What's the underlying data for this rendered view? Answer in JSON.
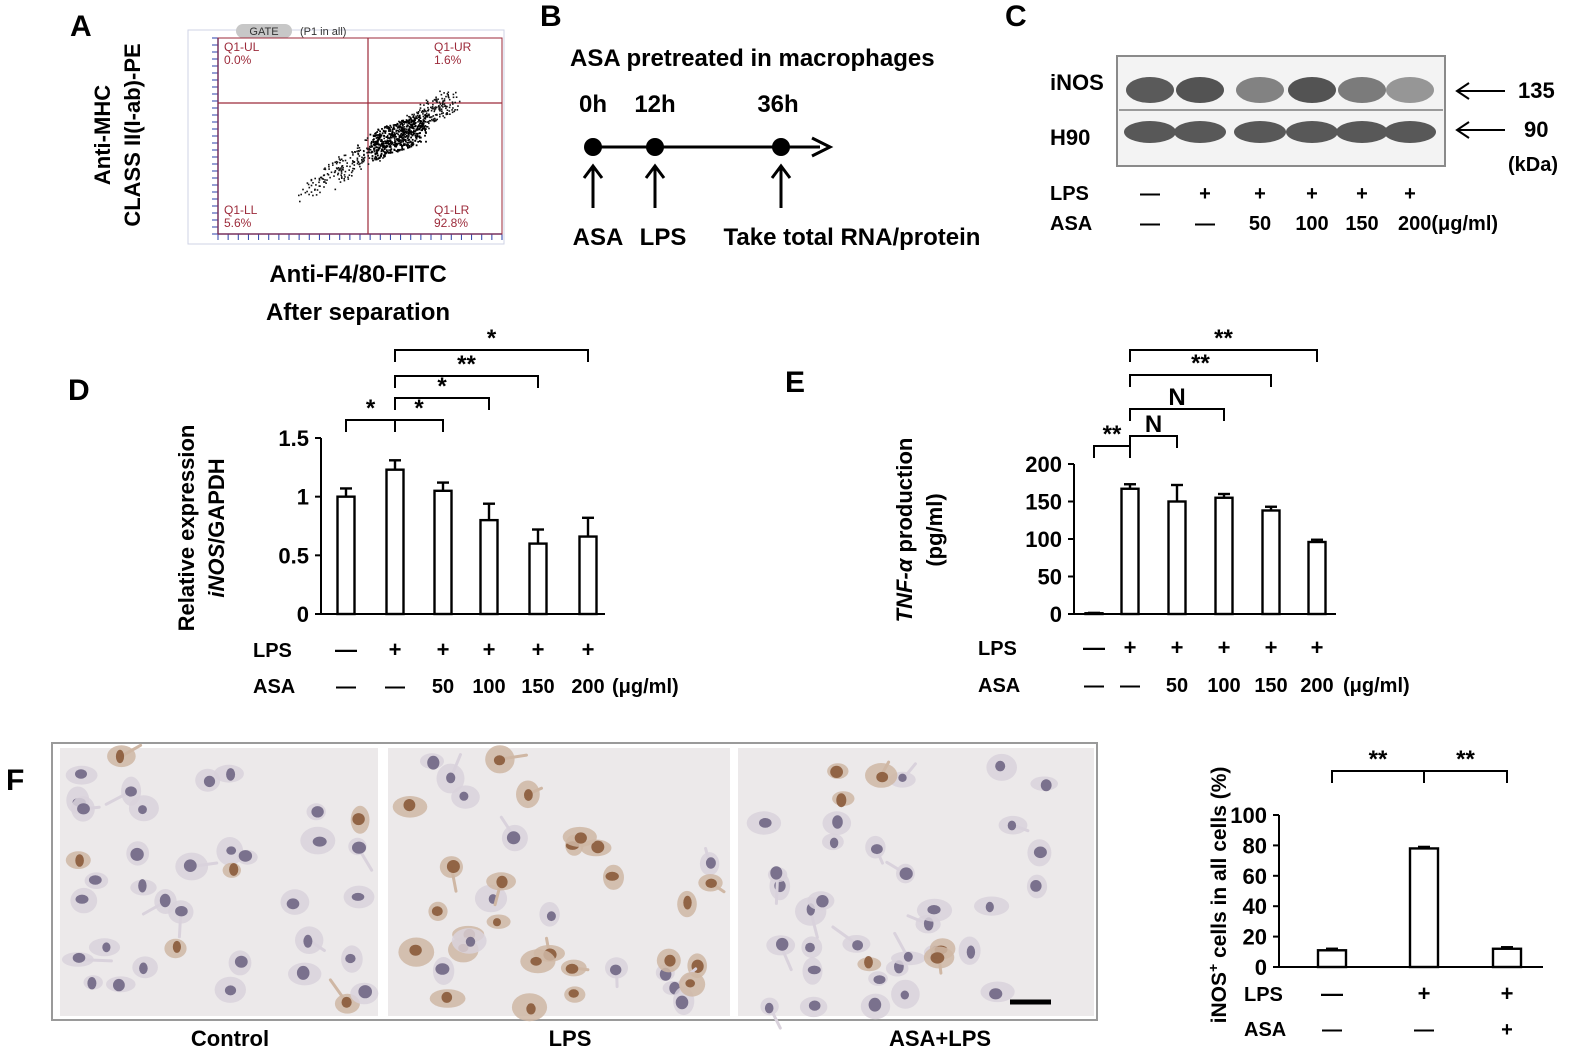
{
  "panels": {
    "A": {
      "label": "A",
      "gate": "GATE",
      "gate_detail": "(P1 in all)",
      "ylabel1": "Anti-MHC",
      "ylabel2": "CLASS II(I-ab)-PE",
      "xlabel": "Anti-F4/80-FITC",
      "caption": "After separation",
      "quadrants": {
        "ul": {
          "name": "Q1-UL",
          "value": "0.0%"
        },
        "ur": {
          "name": "Q1-UR",
          "value": "1.6%"
        },
        "ll": {
          "name": "Q1-LL",
          "value": "5.6%"
        },
        "lr": {
          "name": "Q1-LR",
          "value": "92.8%"
        }
      },
      "colors": {
        "quadrant_line": "#9c2a3a",
        "axis": "#2b3fa8",
        "dots": "#111111"
      }
    },
    "B": {
      "label": "B",
      "title": "ASA pretreated in macrophages",
      "times": [
        "0h",
        "12h",
        "36h"
      ],
      "events": [
        "ASA",
        "LPS",
        "Take total RNA/protein"
      ]
    },
    "C": {
      "label": "C",
      "bands": [
        {
          "name": "iNOS",
          "size": "135"
        },
        {
          "name": "H90",
          "size": "90"
        }
      ],
      "unit": "(kDa)",
      "lps_label": "LPS",
      "asa_label": "ASA",
      "lps": [
        "—",
        "+",
        "+",
        "+",
        "+",
        "+"
      ],
      "asa": [
        "—",
        "—",
        "50",
        "100",
        "150",
        "200(μg/ml)"
      ],
      "inos_intensity": [
        0.85,
        0.9,
        0.55,
        0.9,
        0.6,
        0.4
      ],
      "h90_intensity": [
        0.8,
        0.8,
        0.8,
        0.8,
        0.8,
        0.8
      ]
    },
    "F": {
      "label": "F",
      "micrographs": [
        "Control",
        "LPS",
        "ASA+LPS"
      ],
      "micrograph_colors": {
        "background": "#ece9ea",
        "nucleus": "#6f6684",
        "brown": "#8a5a3a"
      }
    }
  },
  "chart_data": [
    {
      "id": "D",
      "label": "D",
      "type": "bar",
      "ylabel_line1": "Relative expression",
      "ylabel_italic": "iNOS",
      "ylabel_rest": "/GAPDH",
      "yticks": [
        "0",
        "0.5",
        "1",
        "1.5"
      ],
      "ylim": [
        0,
        1.5
      ],
      "values": [
        1.0,
        1.23,
        1.05,
        0.8,
        0.6,
        0.66
      ],
      "errors": [
        0.07,
        0.08,
        0.07,
        0.14,
        0.12,
        0.16
      ],
      "lps": [
        "—",
        "+",
        "+",
        "+",
        "+",
        "+"
      ],
      "asa": [
        "—",
        "—",
        "50",
        "100",
        "150",
        "200"
      ],
      "unit": "(μg/ml)",
      "lps_label": "LPS",
      "asa_label": "ASA",
      "significance": [
        {
          "from": 0,
          "to": 1,
          "label": "*"
        },
        {
          "from": 1,
          "to": 2,
          "label": "*"
        },
        {
          "from": 1,
          "to": 3,
          "label": "*"
        },
        {
          "from": 1,
          "to": 4,
          "label": "**"
        },
        {
          "from": 1,
          "to": 5,
          "label": "*"
        }
      ]
    },
    {
      "id": "E",
      "label": "E",
      "type": "bar",
      "ylabel_italic": "TNF-α",
      "ylabel_rest": " production",
      "ylabel_line2": "(pg/ml)",
      "yticks": [
        "0",
        "50",
        "100",
        "150",
        "200"
      ],
      "ylim": [
        0,
        200
      ],
      "values": [
        1,
        167,
        150,
        155,
        138,
        96
      ],
      "errors": [
        0.5,
        6,
        22,
        5,
        5,
        3
      ],
      "lps": [
        "—",
        "+",
        "+",
        "+",
        "+",
        "+"
      ],
      "asa": [
        "—",
        "—",
        "50",
        "100",
        "150",
        "200"
      ],
      "unit": "(μg/ml)",
      "lps_label": "LPS",
      "asa_label": "ASA",
      "significance": [
        {
          "from": 0,
          "to": 1,
          "label": "**"
        },
        {
          "from": 1,
          "to": 2,
          "label": "N"
        },
        {
          "from": 1,
          "to": 3,
          "label": "N"
        },
        {
          "from": 1,
          "to": 4,
          "label": "**"
        },
        {
          "from": 1,
          "to": 5,
          "label": "**"
        }
      ]
    },
    {
      "id": "F-chart",
      "type": "bar",
      "ylabel_pre": "iNOS",
      "ylabel_sup": "+",
      "ylabel_post": " cells in all cells (%)",
      "yticks": [
        "0",
        "20",
        "40",
        "60",
        "80",
        "100"
      ],
      "ylim": [
        0,
        100
      ],
      "values": [
        11,
        78,
        12
      ],
      "errors": [
        1,
        1,
        1
      ],
      "lps": [
        "—",
        "+",
        "+"
      ],
      "asa": [
        "—",
        "—",
        "+"
      ],
      "lps_label": "LPS",
      "asa_label": "ASA",
      "significance": [
        {
          "from": 0,
          "to": 1,
          "label": "**"
        },
        {
          "from": 1,
          "to": 2,
          "label": "**"
        }
      ]
    }
  ]
}
